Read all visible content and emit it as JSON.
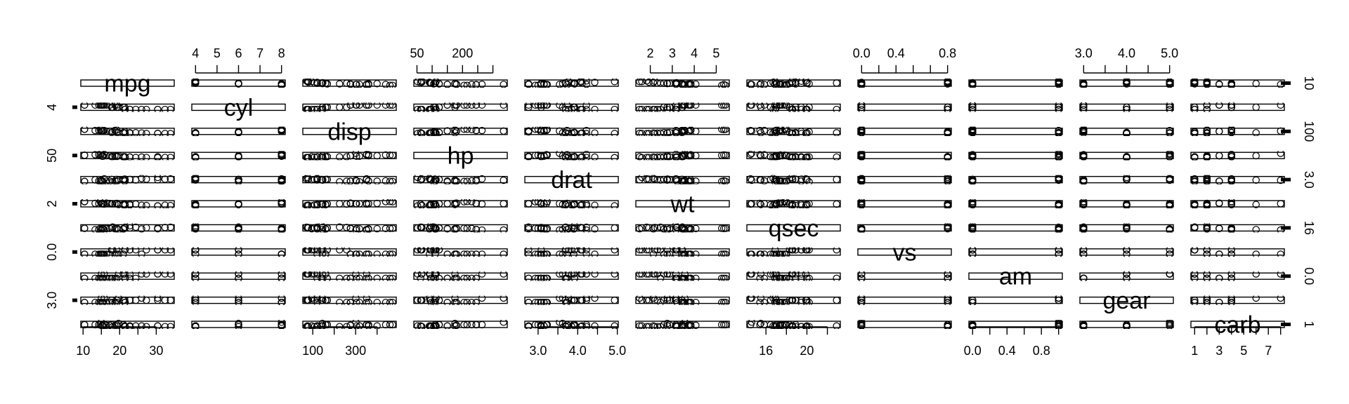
{
  "chart_data": {
    "type": "scatter",
    "subtype": "scatterplot-matrix",
    "title": "",
    "xlabel": "",
    "ylabel": "",
    "grid": false,
    "legend": "none",
    "point_shape": "open-circle",
    "point_color": "#000000",
    "variables": [
      {
        "name": "mpg",
        "range": [
          10.4,
          33.9
        ]
      },
      {
        "name": "cyl",
        "range": [
          4,
          8
        ]
      },
      {
        "name": "disp",
        "range": [
          71.1,
          472
        ]
      },
      {
        "name": "hp",
        "range": [
          52,
          335
        ]
      },
      {
        "name": "drat",
        "range": [
          2.76,
          4.93
        ]
      },
      {
        "name": "wt",
        "range": [
          1.513,
          5.424
        ]
      },
      {
        "name": "qsec",
        "range": [
          14.5,
          22.9
        ]
      },
      {
        "name": "vs",
        "range": [
          0,
          1
        ]
      },
      {
        "name": "am",
        "range": [
          0,
          1
        ]
      },
      {
        "name": "gear",
        "range": [
          3,
          5
        ]
      },
      {
        "name": "carb",
        "range": [
          1,
          8
        ]
      }
    ],
    "axes": {
      "top": [
        {
          "col": 1,
          "ticks": [
            4,
            5,
            6,
            7,
            8
          ],
          "labels": [
            "4",
            "5",
            "6",
            "7",
            "8"
          ]
        },
        {
          "col": 3,
          "ticks": [
            50,
            100,
            150,
            200,
            250,
            300
          ],
          "labels": [
            "50",
            "",
            "",
            "200",
            "",
            ""
          ]
        },
        {
          "col": 5,
          "ticks": [
            2,
            3,
            4,
            5
          ],
          "labels": [
            "2",
            "3",
            "4",
            "5"
          ]
        },
        {
          "col": 7,
          "ticks": [
            0,
            0.2,
            0.4,
            0.6,
            0.8,
            1.0
          ],
          "labels": [
            "0.0",
            "",
            "0.4",
            "",
            "",
            "0.8"
          ]
        },
        {
          "col": 9,
          "ticks": [
            3.0,
            3.5,
            4.0,
            4.5,
            5.0
          ],
          "labels": [
            "3.0",
            "",
            "4.0",
            "",
            "5.0"
          ]
        }
      ],
      "bottom": [
        {
          "col": 0,
          "ticks": [
            10,
            15,
            20,
            25,
            30
          ],
          "labels": [
            "10",
            "",
            "20",
            "",
            "30"
          ]
        },
        {
          "col": 2,
          "ticks": [
            100,
            200,
            300,
            400
          ],
          "labels": [
            "100",
            "",
            "300",
            ""
          ]
        },
        {
          "col": 4,
          "ticks": [
            3.0,
            3.5,
            4.0,
            4.5,
            5.0
          ],
          "labels": [
            "3.0",
            "",
            "4.0",
            "",
            "5.0"
          ]
        },
        {
          "col": 6,
          "ticks": [
            16,
            18,
            20,
            22
          ],
          "labels": [
            "16",
            "",
            "20",
            ""
          ]
        },
        {
          "col": 8,
          "ticks": [
            0,
            0.2,
            0.4,
            0.6,
            0.8,
            1.0
          ],
          "labels": [
            "0.0",
            "",
            "0.4",
            "",
            "0.8",
            ""
          ]
        },
        {
          "col": 10,
          "ticks": [
            1,
            2,
            3,
            4,
            5,
            6,
            7,
            8
          ],
          "labels": [
            "1",
            "",
            "3",
            "",
            "5",
            "",
            "7",
            ""
          ]
        }
      ],
      "left": [
        {
          "row": 1,
          "ticks": [
            4
          ],
          "labels": [
            "4"
          ]
        },
        {
          "row": 3,
          "ticks": [
            50
          ],
          "labels": [
            "50"
          ]
        },
        {
          "row": 5,
          "ticks": [
            2
          ],
          "labels": [
            "2"
          ]
        },
        {
          "row": 7,
          "ticks": [
            0.0
          ],
          "labels": [
            "0.0"
          ]
        },
        {
          "row": 9,
          "ticks": [
            3.0
          ],
          "labels": [
            "3.0"
          ]
        }
      ],
      "right": [
        {
          "row": 0,
          "ticks": [
            10
          ],
          "labels": [
            "10"
          ]
        },
        {
          "row": 2,
          "ticks": [
            100
          ],
          "labels": [
            "100"
          ]
        },
        {
          "row": 4,
          "ticks": [
            3.0
          ],
          "labels": [
            "3.0"
          ]
        },
        {
          "row": 6,
          "ticks": [
            16
          ],
          "labels": [
            "16"
          ]
        },
        {
          "row": 8,
          "ticks": [
            0.0
          ],
          "labels": [
            "0.0"
          ]
        },
        {
          "row": 10,
          "ticks": [
            1
          ],
          "labels": [
            "1"
          ]
        }
      ]
    },
    "records": [
      [
        21.0,
        6,
        160.0,
        110,
        3.9,
        2.62,
        16.46,
        0,
        1,
        4,
        4
      ],
      [
        21.0,
        6,
        160.0,
        110,
        3.9,
        2.875,
        17.02,
        0,
        1,
        4,
        4
      ],
      [
        22.8,
        4,
        108.0,
        93,
        3.85,
        2.32,
        18.61,
        1,
        1,
        4,
        1
      ],
      [
        21.4,
        6,
        258.0,
        110,
        3.08,
        3.215,
        19.44,
        1,
        0,
        3,
        1
      ],
      [
        18.7,
        8,
        360.0,
        175,
        3.15,
        3.44,
        17.02,
        0,
        0,
        3,
        2
      ],
      [
        18.1,
        6,
        225.0,
        105,
        2.76,
        3.46,
        20.22,
        1,
        0,
        3,
        1
      ],
      [
        14.3,
        8,
        360.0,
        245,
        3.21,
        3.57,
        15.84,
        0,
        0,
        3,
        4
      ],
      [
        24.4,
        4,
        146.7,
        62,
        3.69,
        3.19,
        20.0,
        1,
        0,
        4,
        2
      ],
      [
        22.8,
        4,
        140.8,
        95,
        3.92,
        3.15,
        22.9,
        1,
        0,
        4,
        2
      ],
      [
        19.2,
        6,
        167.6,
        123,
        3.92,
        3.44,
        18.3,
        1,
        0,
        4,
        4
      ],
      [
        17.8,
        6,
        167.6,
        123,
        3.92,
        3.44,
        18.9,
        1,
        0,
        4,
        4
      ],
      [
        16.4,
        8,
        275.8,
        180,
        3.07,
        4.07,
        17.4,
        0,
        0,
        3,
        3
      ],
      [
        17.3,
        8,
        275.8,
        180,
        3.07,
        3.73,
        17.6,
        0,
        0,
        3,
        3
      ],
      [
        15.2,
        8,
        275.8,
        180,
        3.07,
        3.78,
        18.0,
        0,
        0,
        3,
        3
      ],
      [
        10.4,
        8,
        472.0,
        205,
        2.93,
        5.25,
        17.98,
        0,
        0,
        3,
        4
      ],
      [
        10.4,
        8,
        460.0,
        215,
        3.0,
        5.424,
        17.82,
        0,
        0,
        3,
        4
      ],
      [
        14.7,
        8,
        440.0,
        230,
        3.23,
        5.345,
        17.42,
        0,
        0,
        3,
        4
      ],
      [
        32.4,
        4,
        78.7,
        66,
        4.08,
        2.2,
        19.47,
        1,
        1,
        4,
        1
      ],
      [
        30.4,
        4,
        75.7,
        52,
        4.93,
        1.615,
        18.52,
        1,
        1,
        4,
        2
      ],
      [
        33.9,
        4,
        71.1,
        65,
        4.22,
        1.835,
        19.9,
        1,
        1,
        4,
        1
      ],
      [
        21.5,
        4,
        120.1,
        97,
        3.7,
        2.465,
        20.01,
        1,
        0,
        3,
        1
      ],
      [
        15.5,
        8,
        318.0,
        150,
        2.76,
        3.52,
        16.87,
        0,
        0,
        3,
        2
      ],
      [
        15.2,
        8,
        304.0,
        150,
        3.15,
        3.435,
        17.3,
        0,
        0,
        3,
        2
      ],
      [
        13.3,
        8,
        350.0,
        245,
        3.73,
        3.84,
        15.41,
        0,
        0,
        3,
        4
      ],
      [
        19.2,
        8,
        400.0,
        175,
        3.08,
        3.845,
        17.05,
        0,
        0,
        3,
        2
      ],
      [
        27.3,
        4,
        79.0,
        66,
        4.08,
        1.935,
        18.9,
        1,
        1,
        4,
        1
      ],
      [
        26.0,
        4,
        120.3,
        91,
        4.43,
        2.14,
        16.7,
        0,
        1,
        5,
        2
      ],
      [
        30.4,
        4,
        95.1,
        113,
        3.77,
        1.513,
        16.9,
        1,
        1,
        5,
        2
      ],
      [
        15.8,
        8,
        351.0,
        264,
        4.22,
        3.17,
        14.5,
        0,
        1,
        5,
        4
      ],
      [
        19.7,
        6,
        145.0,
        175,
        3.62,
        2.77,
        15.5,
        0,
        1,
        5,
        6
      ],
      [
        15.0,
        8,
        301.0,
        335,
        3.54,
        3.57,
        14.6,
        0,
        1,
        5,
        8
      ],
      [
        21.4,
        4,
        121.0,
        109,
        4.11,
        2.78,
        18.6,
        1,
        1,
        4,
        2
      ]
    ]
  }
}
